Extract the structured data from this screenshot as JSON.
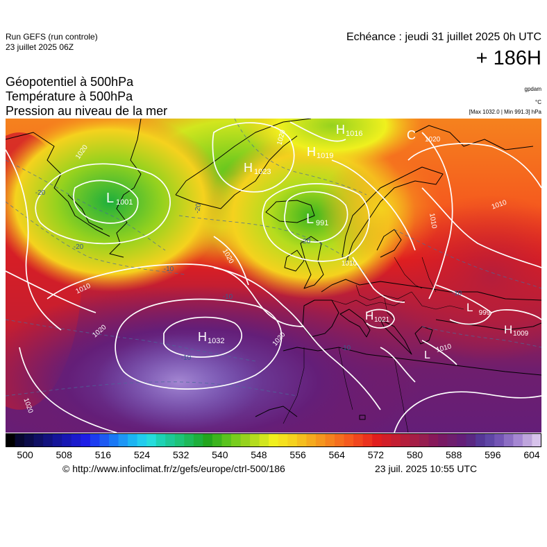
{
  "header": {
    "run_title": "Run GEFS (run controle)",
    "run_date": "23 juillet 2025 06Z",
    "valid_time": "Echéance : jeudi 31 juillet 2025 0h UTC",
    "lead_time": "+ 186H"
  },
  "parameters": [
    {
      "label": "Géopotentiel à 500hPa",
      "unit": "gpdam"
    },
    {
      "label": "Température à 500hPa",
      "unit": "°C"
    },
    {
      "label": "Pression au niveau de la mer",
      "unit": "[Max 1032.0 | Min 991.3] hPa"
    }
  ],
  "map": {
    "region": "europe",
    "slp_max_hpa": 1032.0,
    "slp_min_hpa": 991.3,
    "pressure_centers": [
      {
        "type": "H",
        "value": "1032",
        "lon": -33,
        "lat": 37
      },
      {
        "type": "L",
        "value": "991",
        "lon": -12,
        "lat": 61
      },
      {
        "type": "L",
        "value": "1001",
        "lon": -68,
        "lat": 58
      },
      {
        "type": "H",
        "value": "1023",
        "lon": -40,
        "lat": 68
      },
      {
        "type": "H",
        "value": "1016",
        "lon": -8,
        "lat": 73
      },
      {
        "type": "H",
        "value": "1019",
        "lon": -14,
        "lat": 68
      },
      {
        "type": "H",
        "value": "1021",
        "lon": 2,
        "lat": 43
      },
      {
        "type": "H",
        "value": "1009",
        "lon": 38,
        "lat": 43
      },
      {
        "type": "L",
        "value": "999",
        "lon": 30,
        "lat": 47
      },
      {
        "type": "L",
        "value": "",
        "lon": 20,
        "lat": 40
      }
    ],
    "isobar_labels": [
      "1020",
      "1020",
      "1020",
      "1020",
      "1020",
      "1020",
      "1010",
      "1010",
      "1010",
      "1010",
      "1010",
      "999"
    ],
    "temperature_labels": [
      "-20",
      "-20",
      "-20",
      "-20",
      "-10",
      "-10",
      "-10",
      "-10",
      "-10"
    ]
  },
  "colorbar": {
    "unit": "gpdam",
    "min": 496,
    "max": 606,
    "step": 2,
    "tick_labels": [
      "500",
      "508",
      "516",
      "524",
      "532",
      "540",
      "548",
      "556",
      "564",
      "572",
      "580",
      "588",
      "596",
      "604"
    ],
    "colors": [
      "#000000",
      "#070730",
      "#0b0b4a",
      "#0f0f64",
      "#12127e",
      "#151599",
      "#1717b3",
      "#1a1acc",
      "#1d1de6",
      "#1c3cf0",
      "#1e5af2",
      "#1a78f5",
      "#1e96f5",
      "#1cb4f2",
      "#22ccee",
      "#26dcdc",
      "#1ed2b4",
      "#1ec896",
      "#1ec378",
      "#1eb95a",
      "#1eaf3c",
      "#23a51e",
      "#3cb41e",
      "#5ac31e",
      "#78cd1e",
      "#96d21e",
      "#b4dc1e",
      "#d2e61e",
      "#f0f01e",
      "#f5e11e",
      "#f5d21e",
      "#f5be1e",
      "#f5aa1e",
      "#f5961e",
      "#f5821e",
      "#f56e1e",
      "#f55a1e",
      "#f0461e",
      "#eb321e",
      "#e11e1e",
      "#d21e28",
      "#c31e32",
      "#b41e3c",
      "#a51e46",
      "#961e50",
      "#87195a",
      "#781964",
      "#6e1e6e",
      "#641e78",
      "#5a2882",
      "#553796",
      "#5f46a5",
      "#7355b4",
      "#8c6ec3",
      "#a587d2",
      "#bea5dc",
      "#d7c3eb"
    ]
  },
  "footer": {
    "source": "© http://www.infoclimat.fr/z/gefs/europe/ctrl-500/186",
    "generated": "23 juil. 2025 10:55 UTC"
  }
}
